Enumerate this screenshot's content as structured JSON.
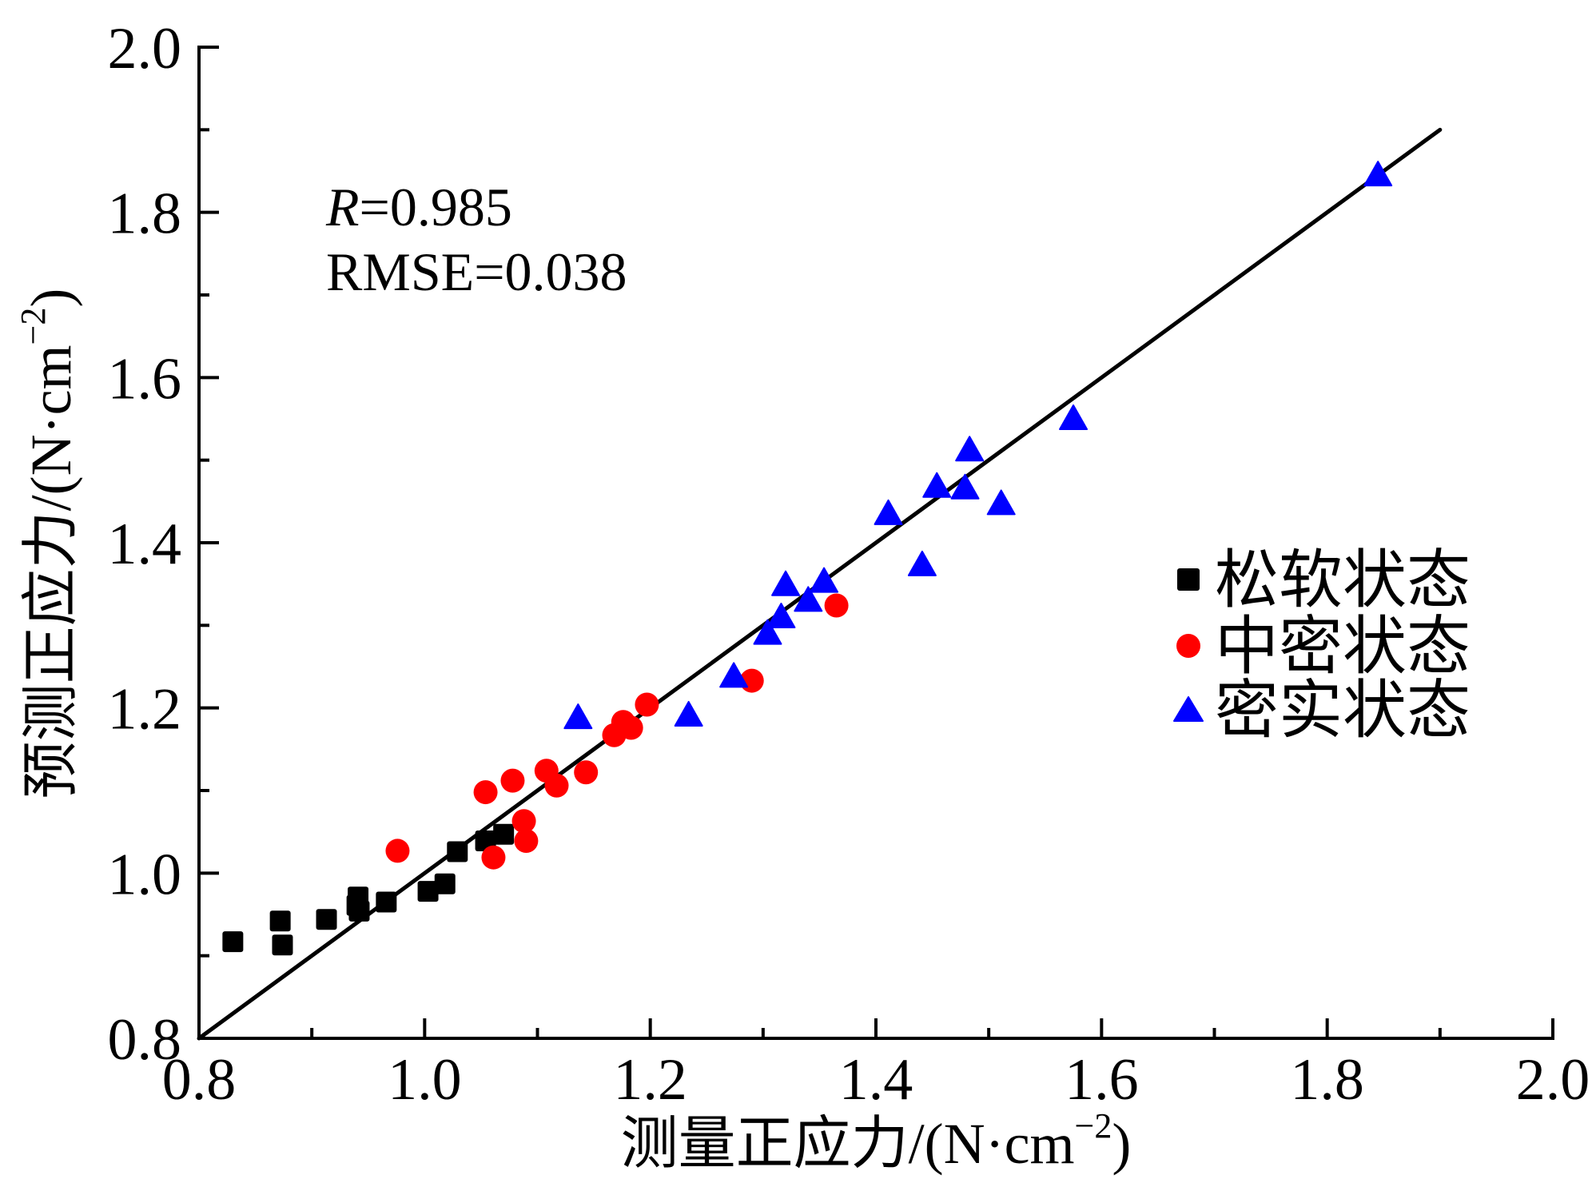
{
  "chart_data": {
    "type": "scatter",
    "title": "",
    "xlabel": "测量正应力/(N·cm⁻²)",
    "xlabel_main": "测量正应力/(N·cm",
    "xlabel_sup": "−2",
    "xlabel_close": ")",
    "ylabel": "预测正应力/(N·cm⁻²)",
    "ylabel_main": "预测正应力/(N·cm",
    "ylabel_sup": "−2",
    "ylabel_close": ")",
    "xlim": [
      0.8,
      2.0
    ],
    "ylim": [
      0.8,
      2.0
    ],
    "xticks": [
      "0.8",
      "1.0",
      "1.2",
      "1.4",
      "1.6",
      "1.8",
      "2.0"
    ],
    "yticks": [
      "0.8",
      "1.0",
      "1.2",
      "1.4",
      "1.6",
      "1.8",
      "2.0"
    ],
    "grid": false,
    "legend_position": "right",
    "annotations": [
      {
        "label": "R",
        "value": "=0.985",
        "italic_label": true
      },
      {
        "label": "RMSE",
        "value": "=0.038",
        "italic_label": false
      }
    ],
    "reference_line": {
      "type": "y=x",
      "from": [
        0.8,
        0.8
      ],
      "to": [
        1.9,
        1.9
      ],
      "color": "#000000"
    },
    "series": [
      {
        "name": "松软状态",
        "marker": "square",
        "color": "#000000",
        "points": [
          [
            0.83,
            0.917
          ],
          [
            0.872,
            0.942
          ],
          [
            0.874,
            0.913
          ],
          [
            0.913,
            0.944
          ],
          [
            0.941,
            0.971
          ],
          [
            0.94,
            0.961
          ],
          [
            0.942,
            0.954
          ],
          [
            0.966,
            0.965
          ],
          [
            1.003,
            0.978
          ],
          [
            1.018,
            0.987
          ],
          [
            1.029,
            1.026
          ],
          [
            1.054,
            1.039
          ],
          [
            1.07,
            1.047
          ]
        ]
      },
      {
        "name": "中密状态",
        "marker": "circle",
        "color": "#ff0000",
        "points": [
          [
            0.976,
            1.027
          ],
          [
            1.054,
            1.098
          ],
          [
            1.078,
            1.112
          ],
          [
            1.108,
            1.124
          ],
          [
            1.117,
            1.106
          ],
          [
            1.143,
            1.122
          ],
          [
            1.088,
            1.063
          ],
          [
            1.09,
            1.039
          ],
          [
            1.061,
            1.019
          ],
          [
            1.168,
            1.167
          ],
          [
            1.176,
            1.183
          ],
          [
            1.183,
            1.176
          ],
          [
            1.197,
            1.204
          ],
          [
            1.29,
            1.233
          ],
          [
            1.365,
            1.324
          ]
        ]
      },
      {
        "name": "密实状态",
        "marker": "triangle",
        "color": "#0000ff",
        "points": [
          [
            1.136,
            1.188
          ],
          [
            1.234,
            1.191
          ],
          [
            1.274,
            1.238
          ],
          [
            1.304,
            1.29
          ],
          [
            1.316,
            1.31
          ],
          [
            1.32,
            1.349
          ],
          [
            1.34,
            1.33
          ],
          [
            1.354,
            1.353
          ],
          [
            1.411,
            1.435
          ],
          [
            1.441,
            1.373
          ],
          [
            1.454,
            1.468
          ],
          [
            1.479,
            1.466
          ],
          [
            1.483,
            1.512
          ],
          [
            1.511,
            1.447
          ],
          [
            1.575,
            1.55
          ],
          [
            1.845,
            1.845
          ]
        ]
      }
    ]
  }
}
